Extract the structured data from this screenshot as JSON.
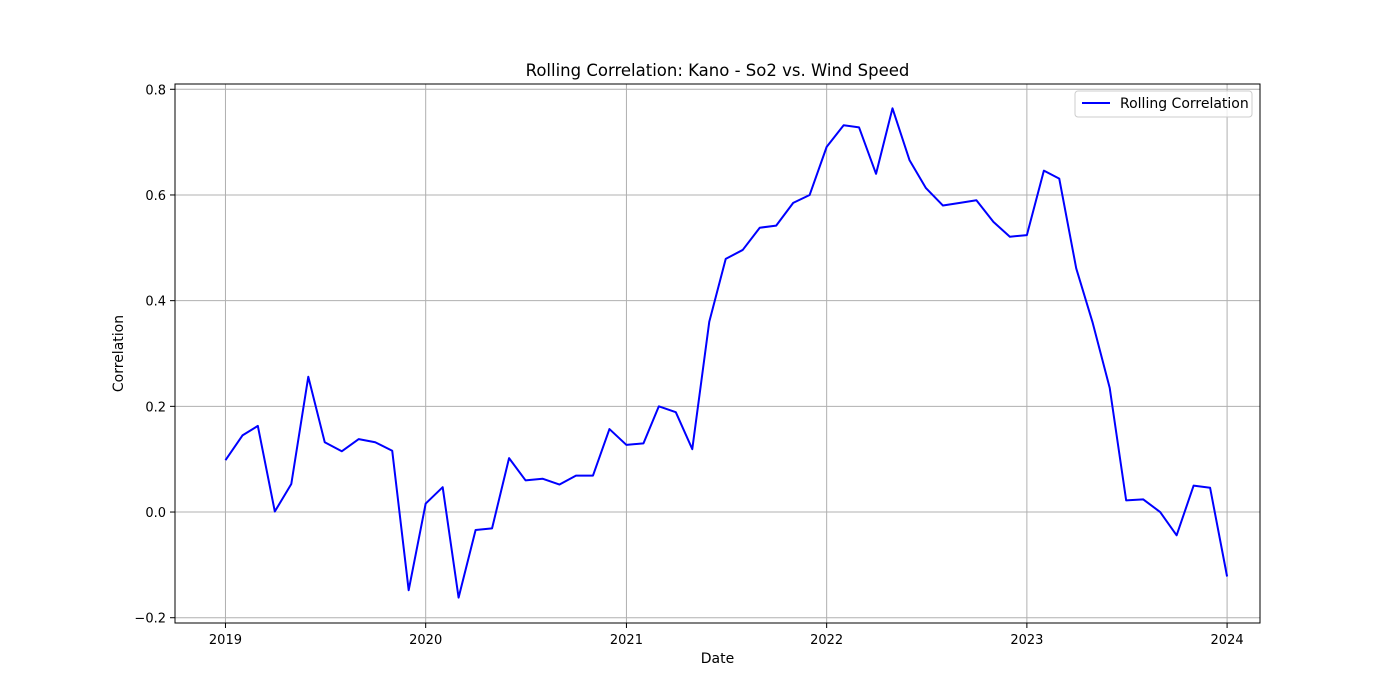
{
  "chart_data": {
    "type": "line",
    "title": "Rolling Correlation: Kano - So2 vs. Wind Speed",
    "xlabel": "Date",
    "ylabel": "Correlation",
    "x_ticks": [
      "2019",
      "2020",
      "2021",
      "2022",
      "2023",
      "2024"
    ],
    "y_ticks": [
      "−0.2",
      "0.0",
      "0.2",
      "0.4",
      "0.6",
      "0.8"
    ],
    "xlim": [
      "2018-10-01",
      "2024-03-01"
    ],
    "ylim": [
      -0.21,
      0.81
    ],
    "grid": true,
    "legend_position": "top-right",
    "series": [
      {
        "name": "Rolling Correlation",
        "color": "#0000ff",
        "x": [
          "2019-01",
          "2019-02",
          "2019-03",
          "2019-04",
          "2019-05",
          "2019-06",
          "2019-07",
          "2019-08",
          "2019-09",
          "2019-10",
          "2019-11",
          "2019-12",
          "2020-01",
          "2020-02",
          "2020-03",
          "2020-04",
          "2020-05",
          "2020-06",
          "2020-07",
          "2020-08",
          "2020-09",
          "2020-10",
          "2020-11",
          "2020-12",
          "2021-01",
          "2021-02",
          "2021-03",
          "2021-04",
          "2021-05",
          "2021-06",
          "2021-07",
          "2021-08",
          "2021-09",
          "2021-10",
          "2021-11",
          "2021-12",
          "2022-01",
          "2022-02",
          "2022-03",
          "2022-04",
          "2022-05",
          "2022-06",
          "2022-07",
          "2022-08",
          "2022-09",
          "2022-10",
          "2022-11",
          "2022-12",
          "2023-01",
          "2023-02",
          "2023-03",
          "2023-04",
          "2023-05",
          "2023-06",
          "2023-07",
          "2023-08",
          "2023-09",
          "2023-10",
          "2023-11",
          "2023-12",
          "2024-01"
        ],
        "y": [
          0.098,
          0.145,
          0.163,
          0.001,
          0.053,
          0.256,
          0.132,
          0.115,
          0.138,
          0.132,
          0.116,
          -0.148,
          0.016,
          0.047,
          -0.162,
          -0.034,
          -0.031,
          0.102,
          0.06,
          0.063,
          0.052,
          0.069,
          0.069,
          0.157,
          0.127,
          0.13,
          0.2,
          0.189,
          0.119,
          0.36,
          0.479,
          0.496,
          0.538,
          0.542,
          0.585,
          0.6,
          0.691,
          0.732,
          0.728,
          0.64,
          0.764,
          0.666,
          0.613,
          0.58,
          0.585,
          0.59,
          0.549,
          0.521,
          0.524,
          0.646,
          0.631,
          0.461,
          0.358,
          0.235,
          0.022,
          0.024,
          0.0,
          -0.044,
          0.05,
          0.046,
          -0.122
        ]
      }
    ]
  }
}
